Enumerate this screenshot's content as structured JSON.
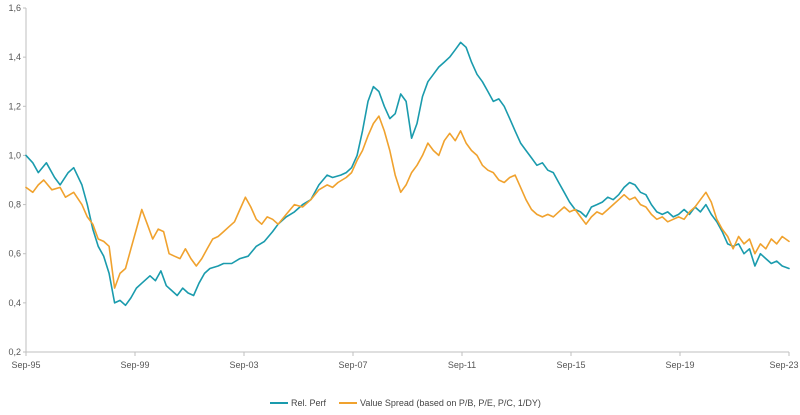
{
  "chart_data": {
    "type": "line",
    "title": "",
    "xlabel": "",
    "ylabel": "",
    "ylim": [
      0.2,
      1.6
    ],
    "xlim": [
      1995.75,
      2023.75
    ],
    "y_ticks": [
      {
        "value": 0.2,
        "label": "0,2"
      },
      {
        "value": 0.4,
        "label": "0,4"
      },
      {
        "value": 0.6,
        "label": "0,6"
      },
      {
        "value": 0.8,
        "label": "0,8"
      },
      {
        "value": 1.0,
        "label": "1,0"
      },
      {
        "value": 1.2,
        "label": "1,2"
      },
      {
        "value": 1.4,
        "label": "1,4"
      },
      {
        "value": 1.6,
        "label": "1,6"
      }
    ],
    "x_ticks": [
      {
        "value": 1995.75,
        "label": "Sep-95"
      },
      {
        "value": 1999.75,
        "label": "Sep-99"
      },
      {
        "value": 2003.75,
        "label": "Sep-03"
      },
      {
        "value": 2007.75,
        "label": "Sep-07"
      },
      {
        "value": 2011.75,
        "label": "Sep-11"
      },
      {
        "value": 2015.75,
        "label": "Sep-15"
      },
      {
        "value": 2019.75,
        "label": "Sep-19"
      },
      {
        "value": 2023.75,
        "label": "Sep-23"
      }
    ],
    "legend_position": "bottom-center",
    "series": [
      {
        "name": "Rel. Perf",
        "color": "#1a9bad",
        "points": [
          [
            1995.75,
            1.0
          ],
          [
            1996.0,
            0.97
          ],
          [
            1996.2,
            0.93
          ],
          [
            1996.5,
            0.97
          ],
          [
            1996.8,
            0.91
          ],
          [
            1997.0,
            0.88
          ],
          [
            1997.3,
            0.93
          ],
          [
            1997.5,
            0.95
          ],
          [
            1997.8,
            0.88
          ],
          [
            1998.0,
            0.8
          ],
          [
            1998.2,
            0.7
          ],
          [
            1998.4,
            0.63
          ],
          [
            1998.6,
            0.59
          ],
          [
            1998.8,
            0.52
          ],
          [
            1999.0,
            0.4
          ],
          [
            1999.2,
            0.41
          ],
          [
            1999.4,
            0.39
          ],
          [
            1999.6,
            0.42
          ],
          [
            1999.8,
            0.46
          ],
          [
            2000.0,
            0.48
          ],
          [
            2000.3,
            0.51
          ],
          [
            2000.5,
            0.49
          ],
          [
            2000.7,
            0.53
          ],
          [
            2000.9,
            0.47
          ],
          [
            2001.1,
            0.45
          ],
          [
            2001.3,
            0.43
          ],
          [
            2001.5,
            0.46
          ],
          [
            2001.7,
            0.44
          ],
          [
            2001.9,
            0.43
          ],
          [
            2002.1,
            0.48
          ],
          [
            2002.3,
            0.52
          ],
          [
            2002.5,
            0.54
          ],
          [
            2002.8,
            0.55
          ],
          [
            2003.0,
            0.56
          ],
          [
            2003.3,
            0.56
          ],
          [
            2003.6,
            0.58
          ],
          [
            2003.9,
            0.59
          ],
          [
            2004.2,
            0.63
          ],
          [
            2004.5,
            0.65
          ],
          [
            2004.8,
            0.69
          ],
          [
            2005.0,
            0.72
          ],
          [
            2005.3,
            0.75
          ],
          [
            2005.6,
            0.77
          ],
          [
            2005.9,
            0.8
          ],
          [
            2006.2,
            0.82
          ],
          [
            2006.5,
            0.88
          ],
          [
            2006.8,
            0.92
          ],
          [
            2007.0,
            0.91
          ],
          [
            2007.3,
            0.92
          ],
          [
            2007.5,
            0.93
          ],
          [
            2007.7,
            0.95
          ],
          [
            2007.9,
            1.0
          ],
          [
            2008.1,
            1.1
          ],
          [
            2008.3,
            1.22
          ],
          [
            2008.5,
            1.28
          ],
          [
            2008.7,
            1.26
          ],
          [
            2008.9,
            1.2
          ],
          [
            2009.1,
            1.15
          ],
          [
            2009.3,
            1.17
          ],
          [
            2009.5,
            1.25
          ],
          [
            2009.7,
            1.22
          ],
          [
            2009.9,
            1.07
          ],
          [
            2010.1,
            1.13
          ],
          [
            2010.3,
            1.24
          ],
          [
            2010.5,
            1.3
          ],
          [
            2010.7,
            1.33
          ],
          [
            2010.9,
            1.36
          ],
          [
            2011.1,
            1.38
          ],
          [
            2011.3,
            1.4
          ],
          [
            2011.5,
            1.43
          ],
          [
            2011.7,
            1.46
          ],
          [
            2011.9,
            1.44
          ],
          [
            2012.1,
            1.38
          ],
          [
            2012.3,
            1.33
          ],
          [
            2012.5,
            1.3
          ],
          [
            2012.7,
            1.26
          ],
          [
            2012.9,
            1.22
          ],
          [
            2013.1,
            1.23
          ],
          [
            2013.3,
            1.2
          ],
          [
            2013.5,
            1.15
          ],
          [
            2013.7,
            1.1
          ],
          [
            2013.9,
            1.05
          ],
          [
            2014.1,
            1.02
          ],
          [
            2014.3,
            0.99
          ],
          [
            2014.5,
            0.96
          ],
          [
            2014.7,
            0.97
          ],
          [
            2014.9,
            0.94
          ],
          [
            2015.1,
            0.93
          ],
          [
            2015.3,
            0.89
          ],
          [
            2015.5,
            0.85
          ],
          [
            2015.7,
            0.81
          ],
          [
            2015.9,
            0.78
          ],
          [
            2016.1,
            0.77
          ],
          [
            2016.3,
            0.75
          ],
          [
            2016.5,
            0.79
          ],
          [
            2016.7,
            0.8
          ],
          [
            2016.9,
            0.81
          ],
          [
            2017.1,
            0.83
          ],
          [
            2017.3,
            0.82
          ],
          [
            2017.5,
            0.84
          ],
          [
            2017.7,
            0.87
          ],
          [
            2017.9,
            0.89
          ],
          [
            2018.1,
            0.88
          ],
          [
            2018.3,
            0.85
          ],
          [
            2018.5,
            0.84
          ],
          [
            2018.7,
            0.8
          ],
          [
            2018.9,
            0.77
          ],
          [
            2019.1,
            0.76
          ],
          [
            2019.3,
            0.77
          ],
          [
            2019.5,
            0.75
          ],
          [
            2019.7,
            0.76
          ],
          [
            2019.9,
            0.78
          ],
          [
            2020.1,
            0.76
          ],
          [
            2020.3,
            0.79
          ],
          [
            2020.5,
            0.77
          ],
          [
            2020.7,
            0.8
          ],
          [
            2020.9,
            0.76
          ],
          [
            2021.1,
            0.73
          ],
          [
            2021.3,
            0.69
          ],
          [
            2021.5,
            0.64
          ],
          [
            2021.7,
            0.63
          ],
          [
            2021.9,
            0.64
          ],
          [
            2022.1,
            0.6
          ],
          [
            2022.3,
            0.62
          ],
          [
            2022.5,
            0.55
          ],
          [
            2022.7,
            0.6
          ],
          [
            2022.9,
            0.58
          ],
          [
            2023.1,
            0.56
          ],
          [
            2023.3,
            0.57
          ],
          [
            2023.5,
            0.55
          ],
          [
            2023.75,
            0.54
          ]
        ]
      },
      {
        "name": "Value Spread (based on P/B, P/E, P/C, 1/DY)",
        "color": "#f0a22e",
        "points": [
          [
            1995.75,
            0.87
          ],
          [
            1996.0,
            0.85
          ],
          [
            1996.2,
            0.88
          ],
          [
            1996.4,
            0.9
          ],
          [
            1996.7,
            0.86
          ],
          [
            1997.0,
            0.87
          ],
          [
            1997.2,
            0.83
          ],
          [
            1997.5,
            0.85
          ],
          [
            1997.8,
            0.8
          ],
          [
            1998.0,
            0.75
          ],
          [
            1998.2,
            0.72
          ],
          [
            1998.4,
            0.66
          ],
          [
            1998.6,
            0.65
          ],
          [
            1998.8,
            0.63
          ],
          [
            1999.0,
            0.46
          ],
          [
            1999.2,
            0.52
          ],
          [
            1999.4,
            0.54
          ],
          [
            1999.6,
            0.62
          ],
          [
            1999.8,
            0.7
          ],
          [
            2000.0,
            0.78
          ],
          [
            2000.2,
            0.72
          ],
          [
            2000.4,
            0.66
          ],
          [
            2000.6,
            0.7
          ],
          [
            2000.8,
            0.69
          ],
          [
            2001.0,
            0.6
          ],
          [
            2001.2,
            0.59
          ],
          [
            2001.4,
            0.58
          ],
          [
            2001.6,
            0.62
          ],
          [
            2001.8,
            0.58
          ],
          [
            2002.0,
            0.55
          ],
          [
            2002.2,
            0.58
          ],
          [
            2002.4,
            0.62
          ],
          [
            2002.6,
            0.66
          ],
          [
            2002.8,
            0.67
          ],
          [
            2003.0,
            0.69
          ],
          [
            2003.2,
            0.71
          ],
          [
            2003.4,
            0.73
          ],
          [
            2003.6,
            0.78
          ],
          [
            2003.8,
            0.83
          ],
          [
            2004.0,
            0.79
          ],
          [
            2004.2,
            0.74
          ],
          [
            2004.4,
            0.72
          ],
          [
            2004.6,
            0.75
          ],
          [
            2004.8,
            0.74
          ],
          [
            2005.0,
            0.72
          ],
          [
            2005.3,
            0.76
          ],
          [
            2005.6,
            0.8
          ],
          [
            2005.9,
            0.79
          ],
          [
            2006.2,
            0.82
          ],
          [
            2006.5,
            0.86
          ],
          [
            2006.8,
            0.88
          ],
          [
            2007.0,
            0.87
          ],
          [
            2007.2,
            0.89
          ],
          [
            2007.5,
            0.91
          ],
          [
            2007.7,
            0.93
          ],
          [
            2007.9,
            0.98
          ],
          [
            2008.1,
            1.02
          ],
          [
            2008.3,
            1.08
          ],
          [
            2008.5,
            1.13
          ],
          [
            2008.7,
            1.16
          ],
          [
            2008.9,
            1.1
          ],
          [
            2009.1,
            1.02
          ],
          [
            2009.3,
            0.92
          ],
          [
            2009.5,
            0.85
          ],
          [
            2009.7,
            0.88
          ],
          [
            2009.9,
            0.93
          ],
          [
            2010.1,
            0.96
          ],
          [
            2010.3,
            1.0
          ],
          [
            2010.5,
            1.05
          ],
          [
            2010.7,
            1.02
          ],
          [
            2010.9,
            1.0
          ],
          [
            2011.1,
            1.06
          ],
          [
            2011.3,
            1.09
          ],
          [
            2011.5,
            1.06
          ],
          [
            2011.7,
            1.1
          ],
          [
            2011.9,
            1.05
          ],
          [
            2012.1,
            1.02
          ],
          [
            2012.3,
            1.0
          ],
          [
            2012.5,
            0.96
          ],
          [
            2012.7,
            0.94
          ],
          [
            2012.9,
            0.93
          ],
          [
            2013.1,
            0.9
          ],
          [
            2013.3,
            0.89
          ],
          [
            2013.5,
            0.91
          ],
          [
            2013.7,
            0.92
          ],
          [
            2013.9,
            0.87
          ],
          [
            2014.1,
            0.82
          ],
          [
            2014.3,
            0.78
          ],
          [
            2014.5,
            0.76
          ],
          [
            2014.7,
            0.75
          ],
          [
            2014.9,
            0.76
          ],
          [
            2015.1,
            0.75
          ],
          [
            2015.3,
            0.77
          ],
          [
            2015.5,
            0.79
          ],
          [
            2015.7,
            0.77
          ],
          [
            2015.9,
            0.78
          ],
          [
            2016.1,
            0.75
          ],
          [
            2016.3,
            0.72
          ],
          [
            2016.5,
            0.75
          ],
          [
            2016.7,
            0.77
          ],
          [
            2016.9,
            0.76
          ],
          [
            2017.1,
            0.78
          ],
          [
            2017.3,
            0.8
          ],
          [
            2017.5,
            0.82
          ],
          [
            2017.7,
            0.84
          ],
          [
            2017.9,
            0.82
          ],
          [
            2018.1,
            0.83
          ],
          [
            2018.3,
            0.8
          ],
          [
            2018.5,
            0.79
          ],
          [
            2018.7,
            0.76
          ],
          [
            2018.9,
            0.74
          ],
          [
            2019.1,
            0.75
          ],
          [
            2019.3,
            0.73
          ],
          [
            2019.5,
            0.74
          ],
          [
            2019.7,
            0.75
          ],
          [
            2019.9,
            0.74
          ],
          [
            2020.1,
            0.77
          ],
          [
            2020.3,
            0.79
          ],
          [
            2020.5,
            0.82
          ],
          [
            2020.7,
            0.85
          ],
          [
            2020.9,
            0.81
          ],
          [
            2021.1,
            0.74
          ],
          [
            2021.3,
            0.7
          ],
          [
            2021.5,
            0.67
          ],
          [
            2021.7,
            0.62
          ],
          [
            2021.9,
            0.67
          ],
          [
            2022.1,
            0.64
          ],
          [
            2022.3,
            0.66
          ],
          [
            2022.5,
            0.6
          ],
          [
            2022.7,
            0.64
          ],
          [
            2022.9,
            0.62
          ],
          [
            2023.1,
            0.66
          ],
          [
            2023.3,
            0.64
          ],
          [
            2023.5,
            0.67
          ],
          [
            2023.75,
            0.65
          ]
        ]
      }
    ]
  }
}
